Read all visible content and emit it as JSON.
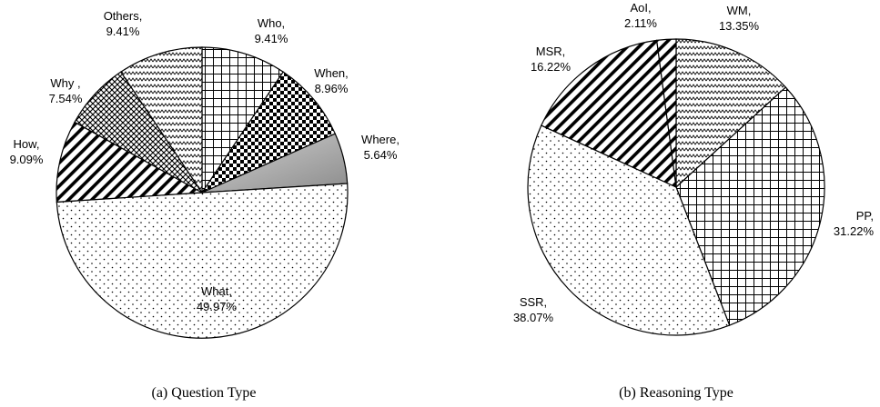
{
  "chart_data": [
    {
      "type": "pie",
      "caption": "(a) Question Type",
      "slices": [
        {
          "name": "Who",
          "value": 9.41,
          "display": "9.41%",
          "pattern": "grid",
          "name_suffix": ","
        },
        {
          "name": "When",
          "value": 8.96,
          "display": "8.96%",
          "pattern": "checker",
          "name_suffix": ","
        },
        {
          "name": "Where",
          "value": 5.64,
          "display": "5.64%",
          "pattern": "gray",
          "name_suffix": ","
        },
        {
          "name": "What",
          "value": 49.97,
          "display": "49.97%",
          "pattern": "dots",
          "name_suffix": ","
        },
        {
          "name": "How",
          "value": 9.09,
          "display": "9.09%",
          "pattern": "diagonal",
          "name_suffix": ","
        },
        {
          "name": "Why",
          "value": 7.54,
          "display": "7.54%",
          "pattern": "crosshatch",
          "name_suffix": " ,"
        },
        {
          "name": "Others",
          "value": 9.41,
          "display": "9.41%",
          "pattern": "zigzag",
          "name_suffix": ","
        }
      ]
    },
    {
      "type": "pie",
      "caption": "(b) Reasoning Type",
      "slices": [
        {
          "name": "WM",
          "value": 13.35,
          "display": "13.35%",
          "pattern": "zigzag",
          "name_suffix": ","
        },
        {
          "name": "PP",
          "value": 31.22,
          "display": "31.22%",
          "pattern": "grid",
          "name_suffix": ","
        },
        {
          "name": "SSR",
          "value": 38.07,
          "display": "38.07%",
          "pattern": "dots",
          "name_suffix": ","
        },
        {
          "name": "MSR",
          "value": 16.22,
          "display": "16.22%",
          "pattern": "diagonal",
          "name_suffix": ","
        },
        {
          "name": "AoI",
          "value": 2.11,
          "display": "2.11%",
          "pattern": "diagonal",
          "name_suffix": ","
        }
      ]
    }
  ]
}
